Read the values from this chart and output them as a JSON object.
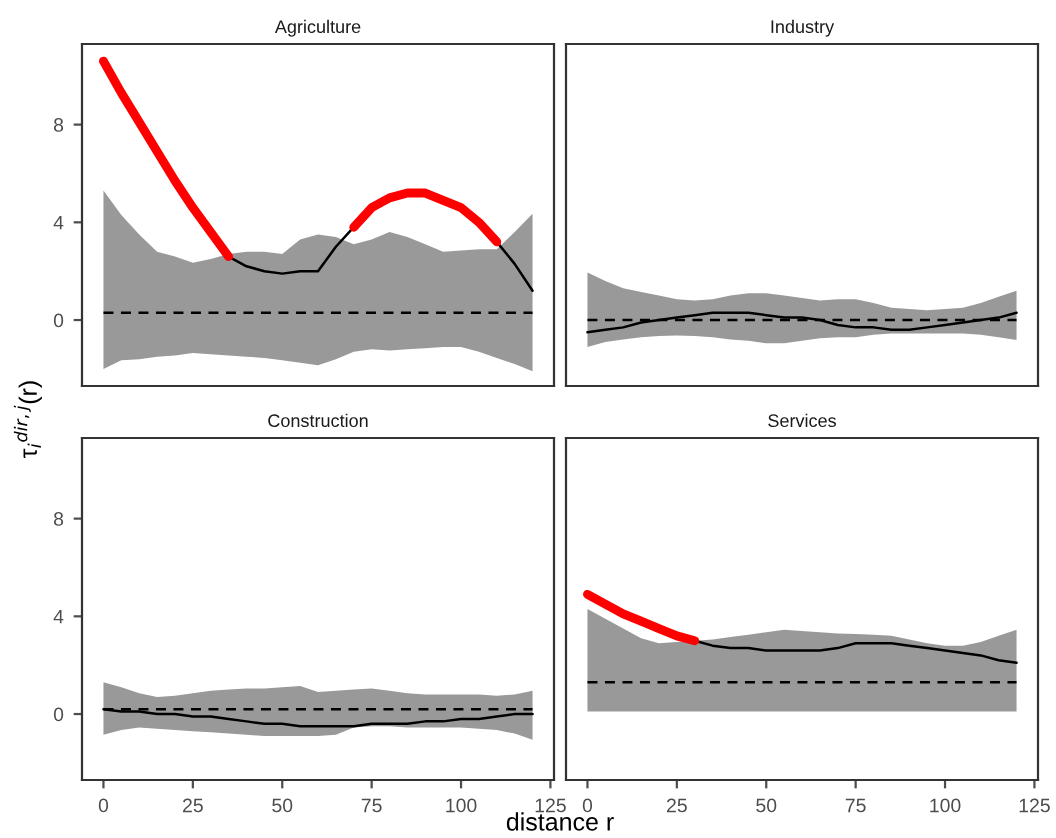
{
  "chart_data": [
    {
      "type": "line",
      "title": "Agriculture",
      "ylabel": "τ$_{i}$$^{dir,j}$(r)",
      "x": [
        0,
        5,
        10,
        15,
        20,
        25,
        30,
        35,
        40,
        45,
        50,
        55,
        60,
        65,
        70,
        75,
        80,
        85,
        90,
        95,
        100,
        105,
        110,
        115,
        120
      ],
      "xlim": [
        -6,
        126
      ],
      "ylim": [
        -2.7,
        11.3
      ],
      "xticks": [
        0,
        25,
        50,
        75,
        100,
        125
      ],
      "yticks": [
        0,
        4,
        8
      ],
      "tick_labels": "y",
      "series": [
        {
          "color": "#000000",
          "line_style": "dashed",
          "values": [
            0.3,
            0.3,
            0.3,
            0.3,
            0.3,
            0.3,
            0.3,
            0.3,
            0.3,
            0.3,
            0.3,
            0.3,
            0.3,
            0.3,
            0.3,
            0.3,
            0.3,
            0.3,
            0.3,
            0.3,
            0.3,
            0.3,
            0.3,
            0.3,
            0.3
          ],
          "lower": [
            -2.0,
            -1.65,
            -1.6,
            -1.5,
            -1.45,
            -1.35,
            -1.4,
            -1.45,
            -1.5,
            -1.55,
            -1.65,
            -1.75,
            -1.85,
            -1.6,
            -1.3,
            -1.2,
            -1.25,
            -1.2,
            -1.15,
            -1.1,
            -1.1,
            -1.3,
            -1.55,
            -1.8,
            -2.1
          ],
          "upper": [
            5.3,
            4.3,
            3.5,
            2.8,
            2.6,
            2.35,
            2.5,
            2.7,
            2.8,
            2.8,
            2.7,
            3.3,
            3.5,
            3.4,
            3.1,
            3.3,
            3.6,
            3.4,
            3.1,
            2.8,
            2.85,
            2.9,
            2.9,
            3.6,
            4.35
          ]
        },
        {
          "color": "#000000",
          "line_style": "solid",
          "values": [
            null,
            null,
            null,
            null,
            null,
            null,
            null,
            2.6,
            2.2,
            2.0,
            1.9,
            2.0,
            2.0,
            3.0,
            3.8,
            null,
            null,
            null,
            null,
            null,
            null,
            null,
            3.2,
            2.3,
            1.2
          ]
        },
        {
          "color": "#ff0000",
          "line_style": "solid",
          "values": [
            10.6,
            9.3,
            8.1,
            6.9,
            5.7,
            4.6,
            3.6,
            2.6,
            null,
            null,
            null,
            null,
            null,
            null,
            3.8,
            4.6,
            5.0,
            5.2,
            5.2,
            4.9,
            4.6,
            4.0,
            3.2,
            null,
            null
          ]
        }
      ]
    },
    {
      "type": "line",
      "title": "Industry",
      "x": [
        0,
        5,
        10,
        15,
        20,
        25,
        30,
        35,
        40,
        45,
        50,
        55,
        60,
        65,
        70,
        75,
        80,
        85,
        90,
        95,
        100,
        105,
        110,
        115,
        120
      ],
      "xlim": [
        -6,
        126
      ],
      "ylim": [
        -2.7,
        11.3
      ],
      "xticks": [
        0,
        25,
        50,
        75,
        100,
        125
      ],
      "yticks": [
        0,
        4,
        8
      ],
      "tick_labels": false,
      "series": [
        {
          "color": "#000000",
          "line_style": "dashed",
          "values": [
            0.0,
            0.0,
            0.0,
            0.0,
            0.0,
            0.0,
            0.0,
            0.0,
            0.0,
            0.0,
            0.0,
            0.0,
            0.0,
            0.0,
            0.0,
            0.0,
            0.0,
            0.0,
            0.0,
            0.0,
            0.0,
            0.0,
            0.0,
            0.0,
            0.0
          ],
          "lower": [
            -1.1,
            -0.9,
            -0.8,
            -0.7,
            -0.65,
            -0.63,
            -0.65,
            -0.7,
            -0.8,
            -0.85,
            -0.95,
            -0.95,
            -0.85,
            -0.75,
            -0.7,
            -0.7,
            -0.6,
            -0.55,
            -0.55,
            -0.55,
            -0.55,
            -0.55,
            -0.6,
            -0.7,
            -0.82
          ],
          "upper": [
            1.95,
            1.6,
            1.3,
            1.15,
            1.0,
            0.85,
            0.8,
            0.85,
            1.0,
            1.1,
            1.1,
            1.0,
            0.9,
            0.8,
            0.85,
            0.85,
            0.7,
            0.5,
            0.45,
            0.4,
            0.45,
            0.5,
            0.7,
            0.95,
            1.2
          ]
        },
        {
          "color": "#000000",
          "line_style": "solid",
          "values": [
            -0.5,
            -0.4,
            -0.3,
            -0.1,
            0.0,
            0.1,
            0.2,
            0.3,
            0.3,
            0.3,
            0.2,
            0.1,
            0.1,
            0.0,
            -0.2,
            -0.3,
            -0.3,
            -0.4,
            -0.4,
            -0.3,
            -0.2,
            -0.1,
            0.0,
            0.1,
            0.3
          ]
        }
      ]
    },
    {
      "type": "line",
      "title": "Construction",
      "xlabel": "distance r",
      "x": [
        0,
        5,
        10,
        15,
        20,
        25,
        30,
        35,
        40,
        45,
        50,
        55,
        60,
        65,
        70,
        75,
        80,
        85,
        90,
        95,
        100,
        105,
        110,
        115,
        120
      ],
      "xlim": [
        -6,
        126
      ],
      "ylim": [
        -2.7,
        11.3
      ],
      "xticks": [
        0,
        25,
        50,
        75,
        100,
        125
      ],
      "yticks": [
        0,
        4,
        8
      ],
      "series": [
        {
          "color": "#000000",
          "line_style": "dashed",
          "values": [
            0.2,
            0.2,
            0.2,
            0.2,
            0.2,
            0.2,
            0.2,
            0.2,
            0.2,
            0.2,
            0.2,
            0.2,
            0.2,
            0.2,
            0.2,
            0.2,
            0.2,
            0.2,
            0.2,
            0.2,
            0.2,
            0.2,
            0.2,
            0.2,
            0.2
          ],
          "lower": [
            -0.85,
            -0.65,
            -0.55,
            -0.6,
            -0.65,
            -0.7,
            -0.75,
            -0.8,
            -0.85,
            -0.9,
            -0.9,
            -0.9,
            -0.9,
            -0.85,
            -0.55,
            -0.5,
            -0.5,
            -0.55,
            -0.55,
            -0.55,
            -0.55,
            -0.6,
            -0.65,
            -0.8,
            -1.05
          ],
          "upper": [
            1.3,
            1.1,
            0.85,
            0.7,
            0.75,
            0.85,
            0.95,
            1.0,
            1.05,
            1.05,
            1.1,
            1.15,
            0.9,
            0.95,
            1.0,
            1.05,
            0.95,
            0.85,
            0.8,
            0.8,
            0.8,
            0.8,
            0.75,
            0.8,
            0.95
          ]
        },
        {
          "color": "#000000",
          "line_style": "solid",
          "values": [
            0.2,
            0.1,
            0.1,
            0.0,
            0.0,
            -0.1,
            -0.1,
            -0.2,
            -0.3,
            -0.4,
            -0.4,
            -0.5,
            -0.5,
            -0.5,
            -0.5,
            -0.4,
            -0.4,
            -0.4,
            -0.3,
            -0.3,
            -0.2,
            -0.2,
            -0.1,
            0.0,
            0.0
          ]
        }
      ]
    },
    {
      "type": "line",
      "title": "Services",
      "x": [
        0,
        5,
        10,
        15,
        20,
        25,
        30,
        35,
        40,
        45,
        50,
        55,
        60,
        65,
        70,
        75,
        80,
        85,
        90,
        95,
        100,
        105,
        110,
        115,
        120
      ],
      "xlim": [
        -6,
        126
      ],
      "ylim": [
        -2.7,
        11.3
      ],
      "xticks": [
        0,
        25,
        50,
        75,
        100,
        125
      ],
      "yticks": [
        0,
        4,
        8
      ],
      "tick_labels": "x",
      "series": [
        {
          "color": "#000000",
          "line_style": "dashed",
          "values": [
            1.3,
            1.3,
            1.3,
            1.3,
            1.3,
            1.3,
            1.3,
            1.3,
            1.3,
            1.3,
            1.3,
            1.3,
            1.3,
            1.3,
            1.3,
            1.3,
            1.3,
            1.3,
            1.3,
            1.3,
            1.3,
            1.3,
            1.3,
            1.3,
            1.3
          ],
          "lower": [
            0.1,
            0.1,
            0.1,
            0.1,
            0.1,
            0.1,
            0.1,
            0.1,
            0.1,
            0.1,
            0.1,
            0.1,
            0.1,
            0.1,
            0.1,
            0.1,
            0.1,
            0.1,
            0.1,
            0.1,
            0.1,
            0.1,
            0.1,
            0.1,
            0.1
          ],
          "upper": [
            4.3,
            3.9,
            3.5,
            3.1,
            2.9,
            2.95,
            3.0,
            3.05,
            3.15,
            3.25,
            3.35,
            3.45,
            3.4,
            3.35,
            3.3,
            3.28,
            3.25,
            3.2,
            3.05,
            2.9,
            2.8,
            2.8,
            2.95,
            3.2,
            3.45
          ]
        },
        {
          "color": "#000000",
          "line_style": "solid",
          "values": [
            null,
            null,
            null,
            null,
            null,
            null,
            3.0,
            2.8,
            2.7,
            2.7,
            2.6,
            2.6,
            2.6,
            2.6,
            2.7,
            2.9,
            2.9,
            2.9,
            2.8,
            2.7,
            2.6,
            2.5,
            2.4,
            2.2,
            2.1
          ]
        },
        {
          "color": "#ff0000",
          "line_style": "solid",
          "values": [
            4.9,
            4.5,
            4.1,
            3.8,
            3.5,
            3.2,
            3.0,
            null,
            null,
            null,
            null,
            null,
            null,
            null,
            null,
            null,
            null,
            null,
            null,
            null,
            null,
            null,
            null,
            null,
            null
          ]
        }
      ]
    }
  ]
}
